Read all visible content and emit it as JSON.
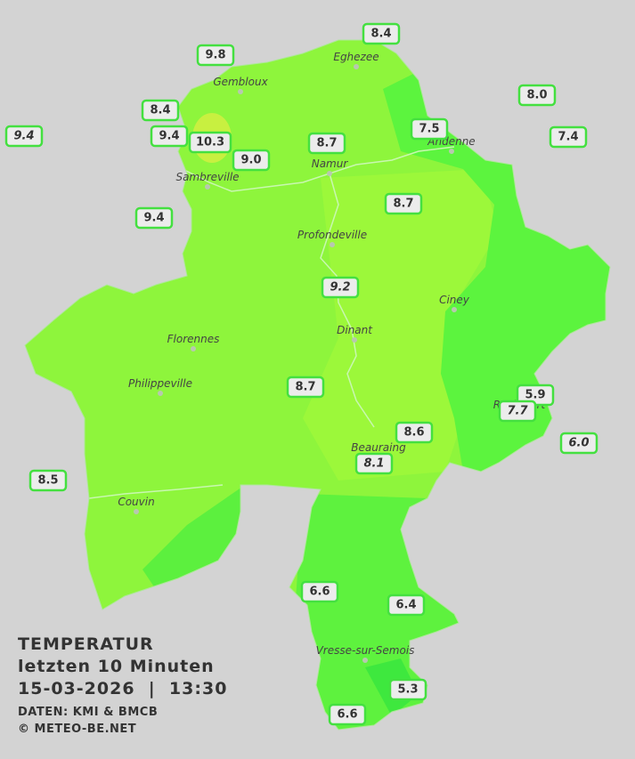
{
  "caption": {
    "title": "TEMPERATUR",
    "period": "letzten 10 Minuten",
    "datetime": "15-03-2026  |  13:30",
    "source": "DATEN: KMI & BMCB",
    "copyright": "© METEO-BE.NET"
  },
  "cities": [
    "Eghezee",
    "Gembloux",
    "Andenne",
    "Namur",
    "Sambreville",
    "Profondeville",
    "Ciney",
    "Dinant",
    "Florennes",
    "Philippeville",
    "Couvin",
    "Vresse-sur-Semois",
    "Rochefort",
    "Beauraing"
  ],
  "stations": [
    {
      "value": "8.4"
    },
    {
      "value": "9.8"
    },
    {
      "value": "8.0"
    },
    {
      "value": "8.4"
    },
    {
      "value": "9.4",
      "italic": true
    },
    {
      "value": "9.4"
    },
    {
      "value": "10.3"
    },
    {
      "value": "7.5"
    },
    {
      "value": "7.4"
    },
    {
      "value": "8.7"
    },
    {
      "value": "9.0"
    },
    {
      "value": "8.7"
    },
    {
      "value": "9.4"
    },
    {
      "value": "9.2",
      "italic": true
    },
    {
      "value": "8.7"
    },
    {
      "value": "5.9"
    },
    {
      "value": "7.7",
      "italic": true
    },
    {
      "value": "6.0",
      "italic": true
    },
    {
      "value": "8.6"
    },
    {
      "value": "8.1",
      "italic": true
    },
    {
      "value": "8.5"
    },
    {
      "value": "6.6"
    },
    {
      "value": "6.4"
    },
    {
      "value": "5.3"
    },
    {
      "value": "6.6"
    }
  ]
}
